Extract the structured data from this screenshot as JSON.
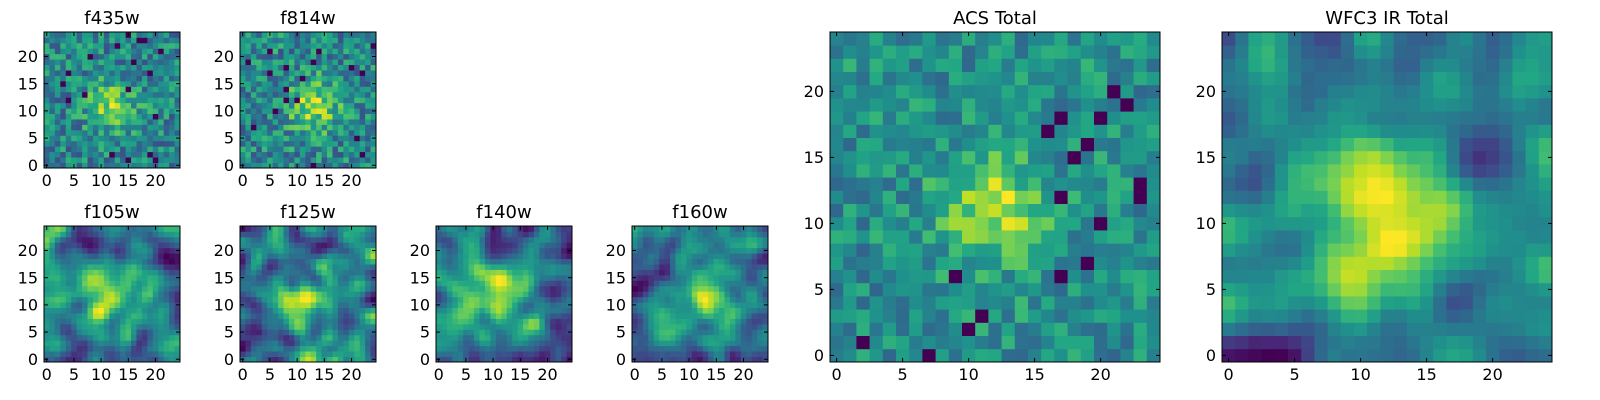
{
  "chart_data": [
    {
      "type": "heatmap",
      "title": "f435w",
      "colormap": "viridis",
      "grid_size": 25,
      "xlim": [
        -0.5,
        24.5
      ],
      "ylim": [
        -0.5,
        24.5
      ],
      "xticks": [
        0,
        5,
        10,
        15,
        20
      ],
      "yticks": [
        0,
        5,
        10,
        15,
        20
      ],
      "smoothness": 0,
      "noise": 0.42,
      "source_peak": [
        12,
        11
      ],
      "source_width": 3.2,
      "source_amp": 0.55,
      "seed": 11
    },
    {
      "type": "heatmap",
      "title": "f814w",
      "colormap": "viridis",
      "grid_size": 25,
      "xlim": [
        -0.5,
        24.5
      ],
      "ylim": [
        -0.5,
        24.5
      ],
      "xticks": [
        0,
        5,
        10,
        15,
        20
      ],
      "yticks": [
        0,
        5,
        10,
        15,
        20
      ],
      "smoothness": 0,
      "noise": 0.42,
      "source_peak": [
        13,
        11
      ],
      "source_width": 3.2,
      "source_amp": 0.6,
      "seed": 23
    },
    {
      "type": "heatmap",
      "title": "f105w",
      "colormap": "viridis",
      "grid_size": 25,
      "xlim": [
        -0.5,
        24.5
      ],
      "ylim": [
        -0.5,
        24.5
      ],
      "xticks": [
        0,
        5,
        10,
        15,
        20
      ],
      "yticks": [
        0,
        5,
        10,
        15,
        20
      ],
      "smoothness": 2,
      "noise": 0.5,
      "source_peak": [
        12,
        11
      ],
      "source_width": 4,
      "source_amp": 0.45,
      "seed": 37
    },
    {
      "type": "heatmap",
      "title": "f125w",
      "colormap": "viridis",
      "grid_size": 25,
      "xlim": [
        -0.5,
        24.5
      ],
      "ylim": [
        -0.5,
        24.5
      ],
      "xticks": [
        0,
        5,
        10,
        15,
        20
      ],
      "yticks": [
        0,
        5,
        10,
        15,
        20
      ],
      "smoothness": 2,
      "noise": 0.5,
      "source_peak": [
        12,
        10
      ],
      "source_width": 4,
      "source_amp": 0.45,
      "seed": 41
    },
    {
      "type": "heatmap",
      "title": "f140w",
      "colormap": "viridis",
      "grid_size": 25,
      "xlim": [
        -0.5,
        24.5
      ],
      "ylim": [
        -0.5,
        24.5
      ],
      "xticks": [
        0,
        5,
        10,
        15,
        20
      ],
      "yticks": [
        0,
        5,
        10,
        15,
        20
      ],
      "smoothness": 2,
      "noise": 0.5,
      "source_peak": [
        11,
        12
      ],
      "source_width": 4,
      "source_amp": 0.45,
      "seed": 53
    },
    {
      "type": "heatmap",
      "title": "f160w",
      "colormap": "viridis",
      "grid_size": 25,
      "xlim": [
        -0.5,
        24.5
      ],
      "ylim": [
        -0.5,
        24.5
      ],
      "xticks": [
        0,
        5,
        10,
        15,
        20
      ],
      "yticks": [
        0,
        5,
        10,
        15,
        20
      ],
      "smoothness": 2,
      "noise": 0.5,
      "source_peak": [
        13,
        12
      ],
      "source_width": 4,
      "source_amp": 0.45,
      "seed": 67
    },
    {
      "type": "heatmap",
      "title": "ACS Total",
      "colormap": "viridis",
      "grid_size": 25,
      "xlim": [
        -0.5,
        24.5
      ],
      "ylim": [
        -0.5,
        24.5
      ],
      "xticks": [
        0,
        5,
        10,
        15,
        20
      ],
      "yticks": [
        0,
        5,
        10,
        15,
        20
      ],
      "smoothness": 0,
      "noise": 0.3,
      "source_peak": [
        12,
        11
      ],
      "source_width": 2.8,
      "source_amp": 0.55,
      "seed": 79
    },
    {
      "type": "heatmap",
      "title": "WFC3 IR Total",
      "colormap": "viridis",
      "grid_size": 25,
      "xlim": [
        -0.5,
        24.5
      ],
      "ylim": [
        -0.5,
        24.5
      ],
      "xticks": [
        0,
        5,
        10,
        15,
        20
      ],
      "yticks": [
        0,
        5,
        10,
        15,
        20
      ],
      "smoothness": 2,
      "noise": 0.5,
      "source_peak": [
        12,
        11
      ],
      "source_width": 3.5,
      "source_amp": 0.5,
      "dark_patch": [
        20,
        15
      ],
      "seed": 97
    }
  ]
}
